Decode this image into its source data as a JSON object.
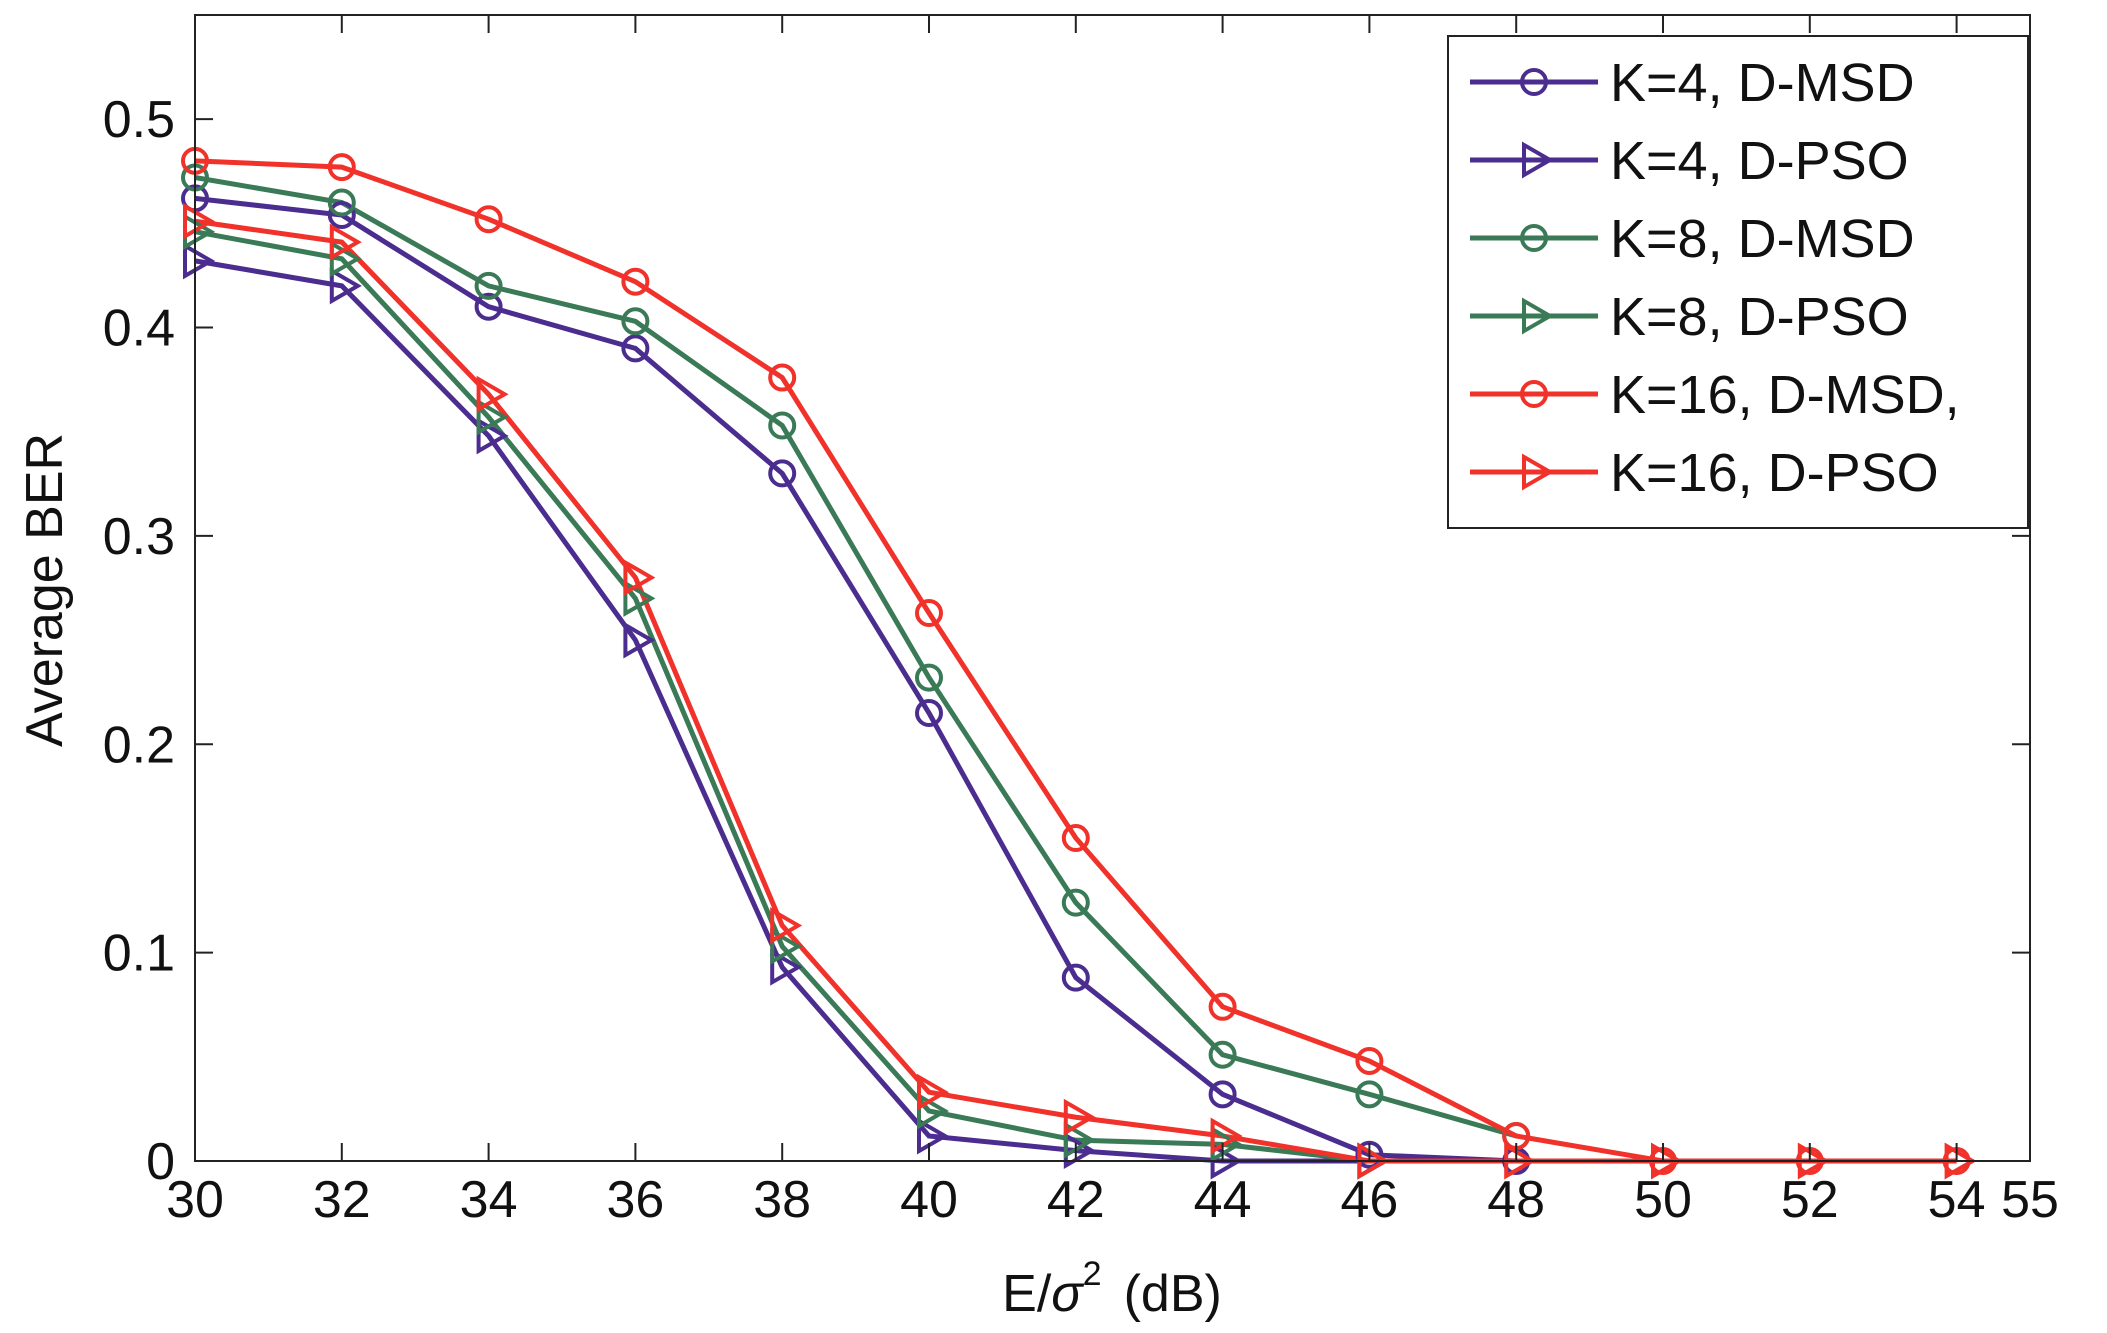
{
  "chart_data": {
    "type": "line",
    "title": "",
    "xlabel": "E/σ²  (dB)",
    "xlabel_main": "E/",
    "xlabel_sigma": "σ",
    "xlabel_exp": "2",
    "xlabel_unit": "(dB)",
    "ylabel": "Average BER",
    "xlim": [
      30,
      55
    ],
    "ylim": [
      0,
      0.55
    ],
    "xticks": [
      30,
      32,
      34,
      36,
      38,
      40,
      42,
      44,
      46,
      48,
      50,
      52,
      54,
      55
    ],
    "xtick_labels": [
      "30",
      "32",
      "34",
      "36",
      "38",
      "40",
      "42",
      "44",
      "46",
      "48",
      "50",
      "52",
      "54",
      "55"
    ],
    "yticks": [
      0,
      0.1,
      0.2,
      0.3,
      0.4,
      0.5
    ],
    "ytick_labels": [
      "0",
      "0.1",
      "0.2",
      "0.3",
      "0.4",
      "0.5"
    ],
    "grid": false,
    "legend_position": "top-right",
    "series": [
      {
        "name": "K=4,  D-MSD",
        "color": "#4b2c8f",
        "marker": "circle",
        "x": [
          30,
          32,
          34,
          36,
          38,
          40,
          42,
          44,
          46,
          48
        ],
        "y": [
          0.462,
          0.454,
          0.41,
          0.39,
          0.33,
          0.215,
          0.088,
          0.032,
          0.003,
          0.0
        ]
      },
      {
        "name": "K=4,  D-PSO",
        "color": "#4b2c8f",
        "marker": "triangle-right",
        "x": [
          30,
          32,
          34,
          36,
          38,
          40,
          42,
          44,
          46
        ],
        "y": [
          0.432,
          0.42,
          0.348,
          0.25,
          0.093,
          0.012,
          0.005,
          0.0,
          0.0
        ]
      },
      {
        "name": "K=8,  D-MSD",
        "color": "#3a7a56",
        "marker": "circle",
        "x": [
          30,
          32,
          34,
          36,
          38,
          40,
          42,
          44,
          46,
          48
        ],
        "y": [
          0.472,
          0.46,
          0.42,
          0.403,
          0.353,
          0.232,
          0.124,
          0.051,
          0.032,
          0.012
        ]
      },
      {
        "name": "K=8,  D-PSO",
        "color": "#3a7a56",
        "marker": "triangle-right",
        "x": [
          30,
          32,
          34,
          36,
          38,
          40,
          42,
          44,
          46
        ],
        "y": [
          0.446,
          0.433,
          0.357,
          0.27,
          0.103,
          0.024,
          0.01,
          0.008,
          0.0
        ]
      },
      {
        "name": "K=16, D-MSD,",
        "color": "#f0322a",
        "marker": "circle",
        "x": [
          30,
          32,
          34,
          36,
          38,
          40,
          42,
          44,
          46,
          48,
          50,
          52,
          54
        ],
        "y": [
          0.48,
          0.477,
          0.452,
          0.422,
          0.376,
          0.263,
          0.155,
          0.074,
          0.048,
          0.012,
          0.0,
          0.0,
          0.0
        ]
      },
      {
        "name": "K=16, D-PSO",
        "color": "#f0322a",
        "marker": "triangle-right",
        "x": [
          30,
          32,
          34,
          36,
          38,
          40,
          42,
          44,
          46,
          48,
          50,
          52,
          54
        ],
        "y": [
          0.451,
          0.441,
          0.368,
          0.28,
          0.113,
          0.033,
          0.021,
          0.012,
          0.0,
          0.0,
          0.0,
          0.0,
          0.0
        ]
      }
    ]
  }
}
